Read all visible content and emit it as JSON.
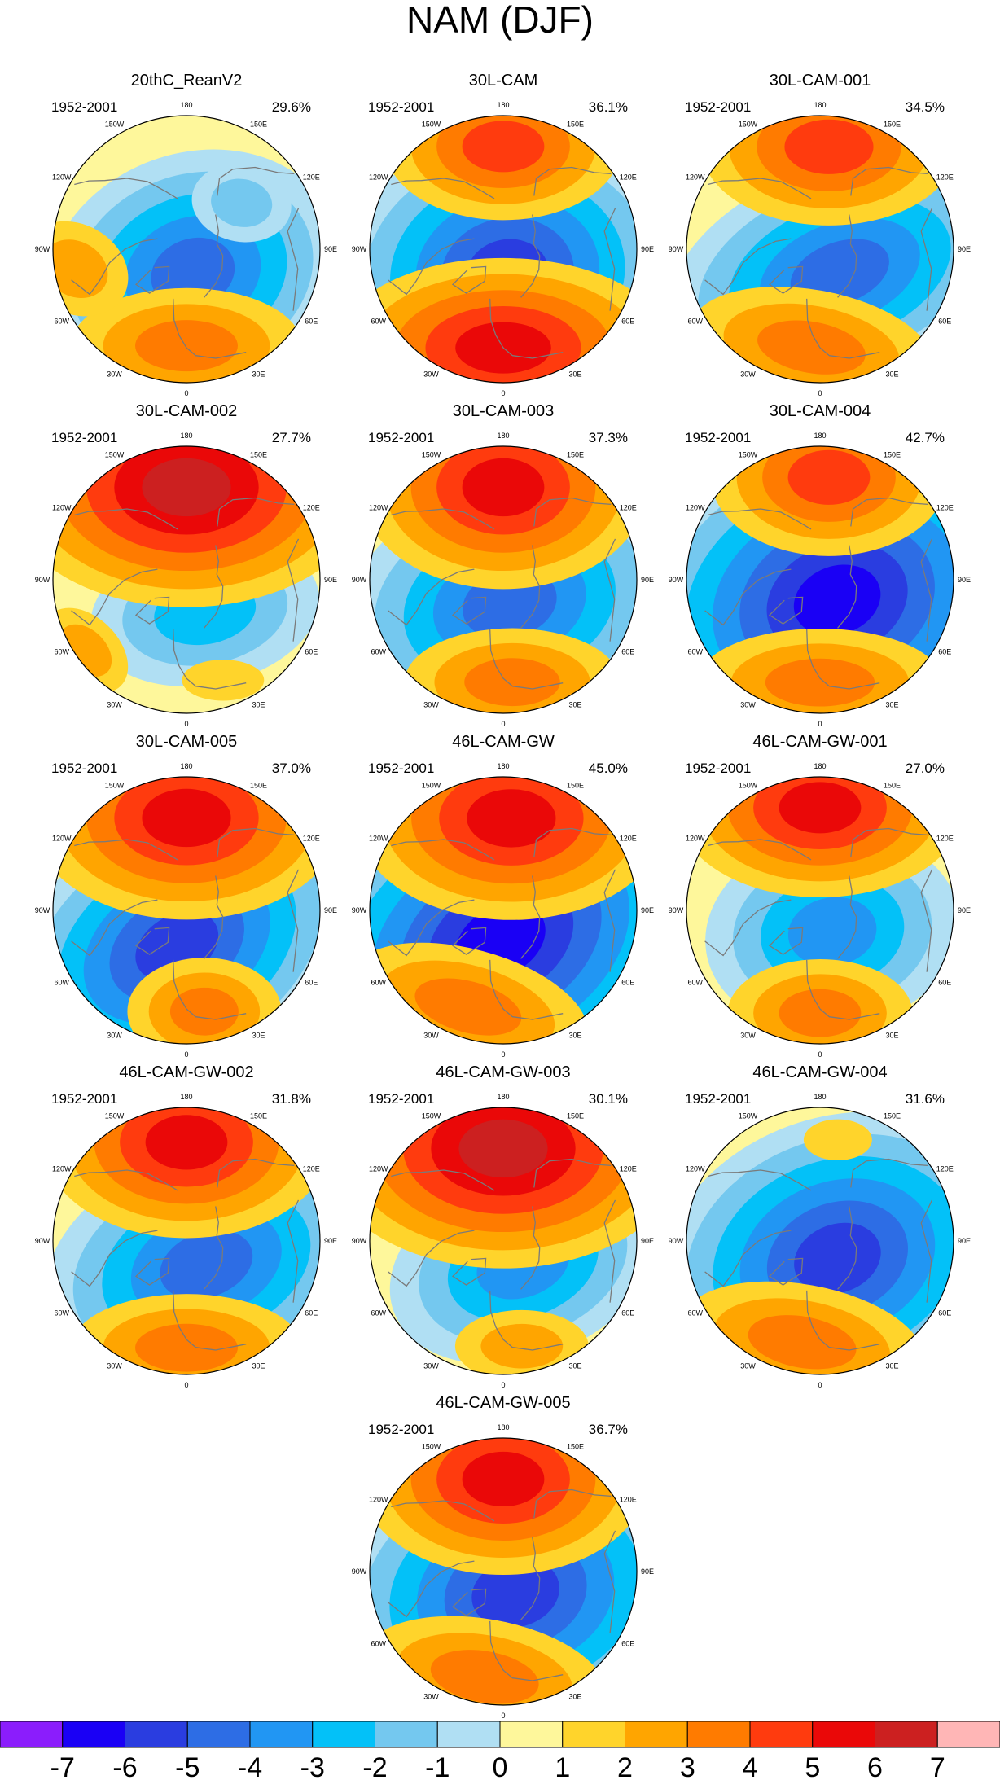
{
  "title": "NAM (DJF)",
  "period": "1952-2001",
  "panels": [
    {
      "name": "20thC_ReanV2",
      "variance": "29.6%",
      "features": [
        {
          "value": -5,
          "lon": 15,
          "colat": 12,
          "ex": 1.25,
          "ey": 1.0,
          "rot": -20
        },
        {
          "value": -2,
          "lon": 130,
          "colat": 35,
          "ex": 0.9,
          "ey": 0.7,
          "rot": 10
        },
        {
          "value": 3,
          "lon": 0,
          "colat": 47,
          "ex": 1.5,
          "ey": 0.75,
          "rot": 0
        },
        {
          "value": 2,
          "lon": -80,
          "colat": 55,
          "ex": 1.0,
          "ey": 0.8,
          "rot": 30
        }
      ]
    },
    {
      "name": "30L-CAM",
      "variance": "36.1%",
      "features": [
        {
          "value": -6,
          "lon": 10,
          "colat": 12,
          "ex": 1.2,
          "ey": 1.0,
          "rot": -10
        },
        {
          "value": 4,
          "lon": 180,
          "colat": 50,
          "ex": 1.2,
          "ey": 0.75,
          "rot": 0
        },
        {
          "value": 5,
          "lon": 0,
          "colat": 48,
          "ex": 1.4,
          "ey": 0.75,
          "rot": 0
        }
      ]
    },
    {
      "name": "30L-CAM-001",
      "variance": "34.5%",
      "features": [
        {
          "value": -5,
          "lon": 40,
          "colat": 15,
          "ex": 1.5,
          "ey": 0.9,
          "rot": -20
        },
        {
          "value": 4,
          "lon": 175,
          "colat": 50,
          "ex": 1.3,
          "ey": 0.8,
          "rot": 0
        },
        {
          "value": 3,
          "lon": -5,
          "colat": 48,
          "ex": 1.6,
          "ey": 0.75,
          "rot": 10
        }
      ]
    },
    {
      "name": "30L-CAM-002",
      "variance": "27.7%",
      "features": [
        {
          "value": -3,
          "lon": 30,
          "colat": 18,
          "ex": 1.5,
          "ey": 0.95,
          "rot": -10
        },
        {
          "value": 6,
          "lon": 180,
          "colat": 45,
          "ex": 1.3,
          "ey": 0.85,
          "rot": 0
        },
        {
          "value": 2,
          "lon": -55,
          "colat": 60,
          "ex": 0.9,
          "ey": 0.6,
          "rot": 45
        },
        {
          "value": 1,
          "lon": 20,
          "colat": 52,
          "ex": 1.2,
          "ey": 0.6,
          "rot": 0
        }
      ]
    },
    {
      "name": "30L-CAM-003",
      "variance": "37.3%",
      "features": [
        {
          "value": -5,
          "lon": 15,
          "colat": 12,
          "ex": 1.4,
          "ey": 1.0,
          "rot": -15
        },
        {
          "value": 5,
          "lon": 180,
          "colat": 45,
          "ex": 1.2,
          "ey": 0.85,
          "rot": 0
        },
        {
          "value": 3,
          "lon": 5,
          "colat": 50,
          "ex": 1.4,
          "ey": 0.7,
          "rot": 0
        }
      ]
    },
    {
      "name": "30L-CAM-004",
      "variance": "42.7%",
      "features": [
        {
          "value": -7,
          "lon": 40,
          "colat": 13,
          "ex": 1.3,
          "ey": 1.0,
          "rot": -20
        },
        {
          "value": 4,
          "lon": 175,
          "colat": 50,
          "ex": 1.2,
          "ey": 0.8,
          "rot": 0
        },
        {
          "value": 3,
          "lon": 0,
          "colat": 50,
          "ex": 1.6,
          "ey": 0.7,
          "rot": 0
        }
      ]
    },
    {
      "name": "30L-CAM-005",
      "variance": "37.0%",
      "features": [
        {
          "value": -6,
          "lon": -15,
          "colat": 18,
          "ex": 1.3,
          "ey": 0.9,
          "rot": -30
        },
        {
          "value": 5,
          "lon": 180,
          "colat": 45,
          "ex": 1.3,
          "ey": 0.85,
          "rot": 0
        },
        {
          "value": 3,
          "lon": 10,
          "colat": 50,
          "ex": 1.0,
          "ey": 0.7,
          "rot": 0
        }
      ]
    },
    {
      "name": "46L-CAM-GW",
      "variance": "45.0%",
      "features": [
        {
          "value": -7,
          "lon": -5,
          "colat": 15,
          "ex": 1.4,
          "ey": 1.0,
          "rot": -30
        },
        {
          "value": 5,
          "lon": 175,
          "colat": 45,
          "ex": 1.3,
          "ey": 0.85,
          "rot": 0
        },
        {
          "value": 3,
          "lon": -20,
          "colat": 50,
          "ex": 1.6,
          "ey": 0.75,
          "rot": 15
        }
      ]
    },
    {
      "name": "46L-CAM-GW-001",
      "variance": "27.0%",
      "features": [
        {
          "value": -4,
          "lon": 30,
          "colat": 12,
          "ex": 1.3,
          "ey": 1.0,
          "rot": -10
        },
        {
          "value": 5,
          "lon": 180,
          "colat": 50,
          "ex": 1.2,
          "ey": 0.75,
          "rot": 0
        },
        {
          "value": 3,
          "lon": 0,
          "colat": 50,
          "ex": 1.2,
          "ey": 0.7,
          "rot": 0
        }
      ]
    },
    {
      "name": "46L-CAM-GW-002",
      "variance": "31.8%",
      "features": [
        {
          "value": -5,
          "lon": 40,
          "colat": 15,
          "ex": 1.4,
          "ey": 0.95,
          "rot": -20
        },
        {
          "value": 5,
          "lon": 180,
          "colat": 48,
          "ex": 1.2,
          "ey": 0.8,
          "rot": 0
        },
        {
          "value": 3,
          "lon": 0,
          "colat": 52,
          "ex": 1.5,
          "ey": 0.7,
          "rot": 0
        }
      ]
    },
    {
      "name": "46L-CAM-GW-003",
      "variance": "30.1%",
      "features": [
        {
          "value": -4,
          "lon": 40,
          "colat": 15,
          "ex": 1.4,
          "ey": 0.95,
          "rot": -20
        },
        {
          "value": 6,
          "lon": 180,
          "colat": 45,
          "ex": 1.3,
          "ey": 0.85,
          "rot": 0
        },
        {
          "value": 2,
          "lon": 10,
          "colat": 52,
          "ex": 1.2,
          "ey": 0.65,
          "rot": 0
        }
      ]
    },
    {
      "name": "46L-CAM-GW-004",
      "variance": "31.6%",
      "features": [
        {
          "value": -6,
          "lon": 45,
          "colat": 12,
          "ex": 1.3,
          "ey": 1.0,
          "rot": -20
        },
        {
          "value": 3,
          "lon": -10,
          "colat": 50,
          "ex": 1.6,
          "ey": 0.75,
          "rot": 10
        },
        {
          "value": 1,
          "lon": 170,
          "colat": 50,
          "ex": 1.0,
          "ey": 0.6,
          "rot": 0
        }
      ]
    },
    {
      "name": "46L-CAM-GW-005",
      "variance": "36.7%",
      "features": [
        {
          "value": -6,
          "lon": 30,
          "colat": 12,
          "ex": 1.3,
          "ey": 1.0,
          "rot": -15
        },
        {
          "value": 5,
          "lon": 180,
          "colat": 45,
          "ex": 1.2,
          "ey": 0.8,
          "rot": 0
        },
        {
          "value": 3,
          "lon": -10,
          "colat": 52,
          "ex": 1.6,
          "ey": 0.75,
          "rot": 10
        }
      ]
    }
  ],
  "lon_labels": [
    {
      "lon": 180,
      "text": "180"
    },
    {
      "lon": -150,
      "text": "150W"
    },
    {
      "lon": 150,
      "text": "150E"
    },
    {
      "lon": -120,
      "text": "120W"
    },
    {
      "lon": 120,
      "text": "120E"
    },
    {
      "lon": -90,
      "text": "90W"
    },
    {
      "lon": 90,
      "text": "90E"
    },
    {
      "lon": -60,
      "text": "60W"
    },
    {
      "lon": 60,
      "text": "60E"
    },
    {
      "lon": -30,
      "text": "30W"
    },
    {
      "lon": 30,
      "text": "30E"
    },
    {
      "lon": 0,
      "text": "0"
    }
  ],
  "colorbar": {
    "colors": [
      "#8b1dfc",
      "#1a00f5",
      "#2a3de0",
      "#2d6de5",
      "#2196f3",
      "#03c1f8",
      "#74c8ef",
      "#b0dff3",
      "#fef79b",
      "#ffd42b",
      "#ffa500",
      "#ff7b00",
      "#ff3b0e",
      "#ea0808",
      "#cc2020",
      "#ffb6b6"
    ],
    "labels": [
      "-7",
      "-6",
      "-5",
      "-4",
      "-3",
      "-2",
      "-1",
      "0",
      "1",
      "2",
      "3",
      "4",
      "5",
      "6",
      "7"
    ]
  },
  "colors": {
    "coast": "#7a7a7a",
    "outline": "#000000",
    "background": "#fef79b",
    "text": "#000000"
  }
}
